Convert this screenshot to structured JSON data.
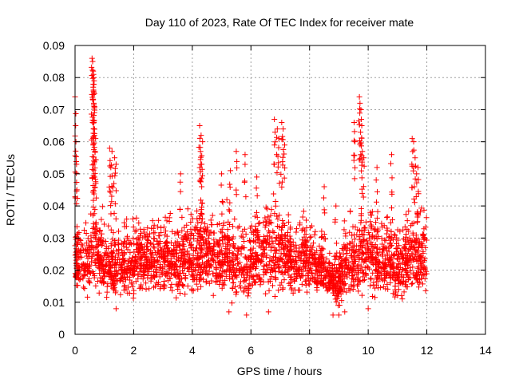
{
  "chart_data": {
    "type": "scatter",
    "title": "Day 110 of 2023, Rate Of TEC Index for receiver mate",
    "xlabel": "GPS time / hours",
    "ylabel": "ROTI / TECUs",
    "xlim": [
      0,
      14
    ],
    "ylim": [
      0,
      0.09
    ],
    "x_ticks": [
      "0",
      "2",
      "4",
      "6",
      "8",
      "10",
      "12",
      "14"
    ],
    "y_ticks": [
      "0",
      "0.01",
      "0.02",
      "0.03",
      "0.04",
      "0.05",
      "0.06",
      "0.07",
      "0.08",
      "0.09"
    ],
    "grid": true,
    "marker": "+",
    "color": "#ff0000",
    "band": [
      [
        0.0,
        0.012,
        0.036
      ],
      [
        0.2,
        0.01,
        0.04
      ],
      [
        0.4,
        0.009,
        0.038
      ],
      [
        0.6,
        0.012,
        0.045
      ],
      [
        0.8,
        0.012,
        0.042
      ],
      [
        1.0,
        0.009,
        0.04
      ],
      [
        1.2,
        0.008,
        0.042
      ],
      [
        1.4,
        0.01,
        0.036
      ],
      [
        1.6,
        0.01,
        0.037
      ],
      [
        1.8,
        0.009,
        0.038
      ],
      [
        2.0,
        0.009,
        0.039
      ],
      [
        2.2,
        0.012,
        0.04
      ],
      [
        2.4,
        0.01,
        0.038
      ],
      [
        2.6,
        0.012,
        0.04
      ],
      [
        2.8,
        0.011,
        0.041
      ],
      [
        3.0,
        0.011,
        0.038
      ],
      [
        3.2,
        0.012,
        0.043
      ],
      [
        3.4,
        0.01,
        0.04
      ],
      [
        3.6,
        0.009,
        0.039
      ],
      [
        3.8,
        0.01,
        0.044
      ],
      [
        4.0,
        0.009,
        0.041
      ],
      [
        4.2,
        0.009,
        0.044
      ],
      [
        4.4,
        0.01,
        0.041
      ],
      [
        4.6,
        0.01,
        0.043
      ],
      [
        4.8,
        0.009,
        0.04
      ],
      [
        5.0,
        0.01,
        0.043
      ],
      [
        5.2,
        0.011,
        0.044
      ],
      [
        5.4,
        0.008,
        0.038
      ],
      [
        5.6,
        0.01,
        0.04
      ],
      [
        5.8,
        0.009,
        0.038
      ],
      [
        6.0,
        0.008,
        0.04
      ],
      [
        6.2,
        0.011,
        0.043
      ],
      [
        6.4,
        0.01,
        0.042
      ],
      [
        6.6,
        0.01,
        0.045
      ],
      [
        6.8,
        0.01,
        0.046
      ],
      [
        7.0,
        0.009,
        0.044
      ],
      [
        7.2,
        0.012,
        0.043
      ],
      [
        7.4,
        0.01,
        0.041
      ],
      [
        7.6,
        0.01,
        0.04
      ],
      [
        7.8,
        0.011,
        0.042
      ],
      [
        8.0,
        0.01,
        0.04
      ],
      [
        8.2,
        0.009,
        0.037
      ],
      [
        8.4,
        0.01,
        0.036
      ],
      [
        8.6,
        0.008,
        0.03
      ],
      [
        8.8,
        0.008,
        0.026
      ],
      [
        9.0,
        0.007,
        0.03
      ],
      [
        9.2,
        0.008,
        0.04
      ],
      [
        9.4,
        0.008,
        0.043
      ],
      [
        9.6,
        0.009,
        0.042
      ],
      [
        9.8,
        0.01,
        0.045
      ],
      [
        10.0,
        0.01,
        0.044
      ],
      [
        10.2,
        0.01,
        0.043
      ],
      [
        10.4,
        0.009,
        0.041
      ],
      [
        10.6,
        0.01,
        0.04
      ],
      [
        10.8,
        0.009,
        0.042
      ],
      [
        11.0,
        0.008,
        0.038
      ],
      [
        11.2,
        0.01,
        0.04
      ],
      [
        11.4,
        0.01,
        0.043
      ],
      [
        11.6,
        0.009,
        0.044
      ],
      [
        11.8,
        0.01,
        0.042
      ],
      [
        12.0,
        0.012,
        0.044
      ]
    ],
    "spikes": [
      [
        0.0,
        0.074
      ],
      [
        0.02,
        0.065
      ],
      [
        0.03,
        0.06
      ],
      [
        0.05,
        0.053
      ],
      [
        0.58,
        0.086
      ],
      [
        0.6,
        0.085
      ],
      [
        0.62,
        0.082
      ],
      [
        0.63,
        0.081
      ],
      [
        0.64,
        0.08
      ],
      [
        0.65,
        0.079
      ],
      [
        0.62,
        0.077
      ],
      [
        0.66,
        0.075
      ],
      [
        0.64,
        0.072
      ],
      [
        0.6,
        0.066
      ],
      [
        0.63,
        0.064
      ],
      [
        0.66,
        0.062
      ],
      [
        0.7,
        0.061
      ],
      [
        0.62,
        0.059
      ],
      [
        0.68,
        0.057
      ],
      [
        0.64,
        0.054
      ],
      [
        1.18,
        0.058
      ],
      [
        1.26,
        0.057
      ],
      [
        1.35,
        0.055
      ],
      [
        1.4,
        0.053
      ],
      [
        1.22,
        0.052
      ],
      [
        4.25,
        0.065
      ],
      [
        4.3,
        0.062
      ],
      [
        4.35,
        0.06
      ],
      [
        4.28,
        0.057
      ],
      [
        4.32,
        0.053
      ],
      [
        5.5,
        0.057
      ],
      [
        5.8,
        0.056
      ],
      [
        6.2,
        0.049
      ],
      [
        6.8,
        0.067
      ],
      [
        6.9,
        0.064
      ],
      [
        7.05,
        0.066
      ],
      [
        7.1,
        0.064
      ],
      [
        6.95,
        0.061
      ],
      [
        7.15,
        0.059
      ],
      [
        9.52,
        0.066
      ],
      [
        9.7,
        0.074
      ],
      [
        9.72,
        0.072
      ],
      [
        9.75,
        0.07
      ],
      [
        9.78,
        0.065
      ],
      [
        9.74,
        0.063
      ],
      [
        9.55,
        0.06
      ],
      [
        9.8,
        0.057
      ],
      [
        9.85,
        0.055
      ],
      [
        10.3,
        0.052
      ],
      [
        10.8,
        0.056
      ],
      [
        11.5,
        0.061
      ],
      [
        11.55,
        0.06
      ],
      [
        11.6,
        0.055
      ],
      [
        11.7,
        0.052
      ],
      [
        11.65,
        0.05
      ],
      [
        5.3,
        0.051
      ],
      [
        5.0,
        0.05
      ],
      [
        8.5,
        0.046
      ],
      [
        8.9,
        0.04
      ],
      [
        3.6,
        0.05
      ]
    ],
    "tails": [
      [
        5.25,
        0.007
      ],
      [
        5.85,
        0.006
      ],
      [
        9.0,
        0.006
      ],
      [
        9.2,
        0.007
      ],
      [
        10.0,
        0.008
      ],
      [
        1.4,
        0.008
      ],
      [
        6.6,
        0.007
      ],
      [
        8.8,
        0.006
      ]
    ]
  }
}
